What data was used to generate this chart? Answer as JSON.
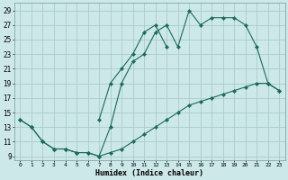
{
  "xlabel": "Humidex (Indice chaleur)",
  "bg_color": "#cce8e8",
  "grid_color": "#aacccc",
  "line_color": "#1a6b5a",
  "xlim": [
    -0.5,
    23.5
  ],
  "ylim": [
    8.5,
    30
  ],
  "xticks": [
    0,
    1,
    2,
    3,
    4,
    5,
    6,
    7,
    8,
    9,
    10,
    11,
    12,
    13,
    14,
    15,
    16,
    17,
    18,
    19,
    20,
    21,
    22,
    23
  ],
  "yticks": [
    9,
    11,
    13,
    15,
    17,
    19,
    21,
    23,
    25,
    27,
    29
  ],
  "series": [
    {
      "x": [
        0,
        1,
        2,
        3,
        4,
        5,
        6,
        7,
        8,
        9,
        10,
        11,
        12,
        13,
        14,
        15,
        16,
        17,
        18,
        19,
        20,
        21,
        22,
        23
      ],
      "y": [
        14,
        13,
        11,
        10,
        10,
        9.5,
        9.5,
        9,
        9.5,
        10,
        11,
        12,
        13,
        14,
        15,
        16,
        16.5,
        17,
        17.5,
        18,
        18.5,
        19,
        19,
        18
      ]
    },
    {
      "x": [
        7,
        8,
        9,
        10,
        11,
        12,
        13
      ],
      "y": [
        14,
        19,
        21,
        23,
        26,
        27,
        24
      ]
    },
    {
      "x": [
        0,
        1,
        2,
        3,
        4,
        5,
        6,
        7,
        8,
        9,
        10,
        11,
        12,
        13,
        14,
        15,
        16,
        17,
        18,
        19,
        20,
        21,
        22,
        23
      ],
      "y": [
        14,
        13,
        11,
        10,
        10,
        9.5,
        9.5,
        9,
        13,
        19,
        22,
        23,
        26,
        27,
        24,
        29,
        27,
        28,
        28,
        28,
        27,
        24,
        19,
        18
      ]
    }
  ]
}
